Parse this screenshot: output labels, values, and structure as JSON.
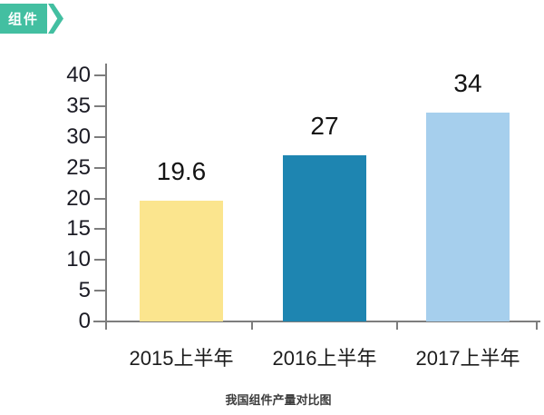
{
  "badge": {
    "label": "组件",
    "color": "#43BFA1"
  },
  "chart_data": {
    "type": "bar",
    "title": "我国组件产量对比图",
    "categories": [
      "2015上半年",
      "2016上半年",
      "2017上半年"
    ],
    "values": [
      19.6,
      27,
      34
    ],
    "value_labels": [
      "19.6",
      "27",
      "34"
    ],
    "bar_colors": [
      "#FBE58E",
      "#1E85B1",
      "#A6CFED"
    ],
    "xlabel": "",
    "ylabel": "",
    "ylim": [
      0,
      40
    ],
    "yticks": [
      0,
      5,
      10,
      15,
      20,
      25,
      30,
      35,
      40
    ],
    "ytick_labels": [
      "0",
      "5",
      "10",
      "15",
      "20",
      "25",
      "30",
      "35",
      "40"
    ],
    "grid": false,
    "legend": "none",
    "axis_color": "#7d7d7d",
    "text_color": "#1b1b24"
  }
}
